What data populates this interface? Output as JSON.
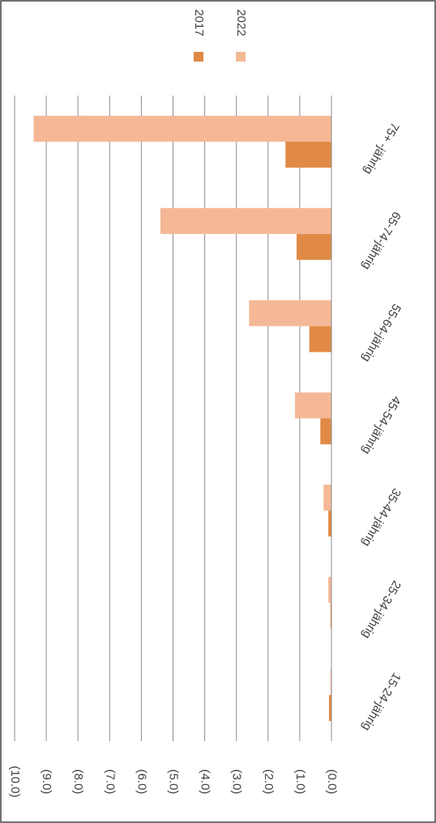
{
  "chart_data": {
    "type": "bar",
    "orientation": "horizontal",
    "categories": [
      "75+ -jährig",
      "65-74-jährig",
      "55-64-jährig",
      "45-54-jährig",
      "35-44-jährig",
      "25-34-jährig",
      "15-24-jährig"
    ],
    "series": [
      {
        "name": "2017",
        "color": "#e08a45",
        "values": [
          -1.45,
          -1.1,
          -0.7,
          -0.35,
          -0.1,
          -0.03,
          -0.08
        ]
      },
      {
        "name": "2022",
        "color": "#f5b896",
        "values": [
          -9.4,
          -5.4,
          -2.6,
          -1.15,
          -0.25,
          -0.1,
          -0.03
        ]
      }
    ],
    "ylim": [
      -10,
      0
    ],
    "yticks": [
      {
        "value": -10,
        "label": "(10.0)"
      },
      {
        "value": -9,
        "label": "(9.0)"
      },
      {
        "value": -8,
        "label": "(8.0)"
      },
      {
        "value": -7,
        "label": "(7.0)"
      },
      {
        "value": -6,
        "label": "(6.0)"
      },
      {
        "value": -5,
        "label": "(5.0)"
      },
      {
        "value": -4,
        "label": "(4.0)"
      },
      {
        "value": -3,
        "label": "(3.0)"
      },
      {
        "value": -2,
        "label": "(2.0)"
      },
      {
        "value": -1,
        "label": "(1.0)"
      },
      {
        "value": 0,
        "label": "(0.0)"
      }
    ],
    "grid": true,
    "legend": "top"
  }
}
